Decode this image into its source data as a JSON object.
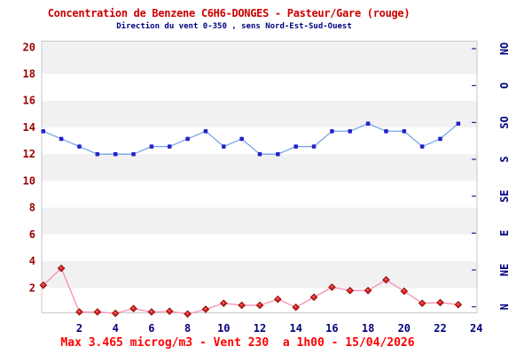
{
  "chart": {
    "title": "Concentration de Benzene C6H6-DONGES - Pasteur/Gare (rouge)",
    "subtitle": "Direction du vent 0-350 , sens Nord-Est-Sud-Ouest",
    "footer": "Max 3.465 microg/m3 - Vent 230  a 1h00 - 15/04/2026",
    "colors": {
      "title": "#cc0000",
      "subtitle": "#000080",
      "footer": "#ff0000",
      "y_axis_labels": "#990000",
      "x_axis_labels": "#000080",
      "direction_labels": "#000080",
      "plot_border": "#c8c8c8",
      "band_gray": "#f1f1f1",
      "band_white": "#ffffff",
      "benzene_line": "#f78fb2",
      "benzene_marker": "#e02525",
      "benzene_marker_edge": "#8b1111",
      "benzene_marker_glint": "#ff9e9e",
      "wind_line": "#7aa3ea",
      "wind_marker": "#2323c8"
    }
  },
  "chart_data": {
    "type": "line",
    "x_values_hours": [
      0,
      1,
      2,
      3,
      4,
      5,
      6,
      7,
      8,
      9,
      10,
      11,
      12,
      13,
      14,
      15,
      16,
      17,
      18,
      19,
      20,
      21,
      22,
      23
    ],
    "x_range": [
      0,
      24
    ],
    "x_tick_hours": [
      2,
      4,
      6,
      8,
      10,
      12,
      14,
      16,
      18,
      20,
      22,
      24
    ],
    "x_tick_labels": [
      "2",
      "4",
      "6",
      "8",
      "10",
      "12",
      "14",
      "16",
      "18",
      "20",
      "22",
      "24"
    ],
    "y_left": {
      "tick_labels": [
        "20",
        "18",
        "16",
        "14",
        "12",
        "10",
        "8",
        "6",
        "4",
        "2"
      ],
      "tick_values": [
        20,
        18,
        16,
        14,
        12,
        10,
        8,
        6,
        4,
        2
      ],
      "range_plotted": [
        0,
        20.3
      ]
    },
    "y_right": {
      "labels_bottom_to_top": [
        "N",
        "NE",
        "E",
        "SE",
        "S",
        "SO",
        "O",
        "NO"
      ]
    },
    "grid": {
      "horizontal_bands": "alternating gray/white every 2 units",
      "vertical_gridlines": false
    },
    "wind_scale_deg_per_left_unit": 17.5,
    "series": [
      {
        "name": "benzene-concentration",
        "unit": "microg/m3",
        "marker": "diamond",
        "values": [
          2.2,
          3.465,
          0.2,
          0.2,
          0.1,
          0.45,
          0.2,
          0.25,
          0.05,
          0.4,
          0.85,
          0.7,
          0.7,
          1.15,
          0.55,
          1.3,
          2.05,
          1.8,
          1.8,
          2.6,
          1.75,
          0.85,
          0.9,
          0.75
        ]
      },
      {
        "name": "wind-direction",
        "unit": "deg",
        "marker": "square",
        "values_deg": [
          240,
          230,
          220,
          210,
          210,
          210,
          220,
          220,
          230,
          240,
          220,
          230,
          210,
          210,
          220,
          220,
          240,
          240,
          250,
          240,
          240,
          220,
          230,
          250
        ]
      }
    ],
    "annotations": {
      "max_benzene": "3.465",
      "max_unit": "microg/m3",
      "wind_at_max": "230",
      "time_at_max": "1h00",
      "date": "15/04/2026"
    }
  }
}
